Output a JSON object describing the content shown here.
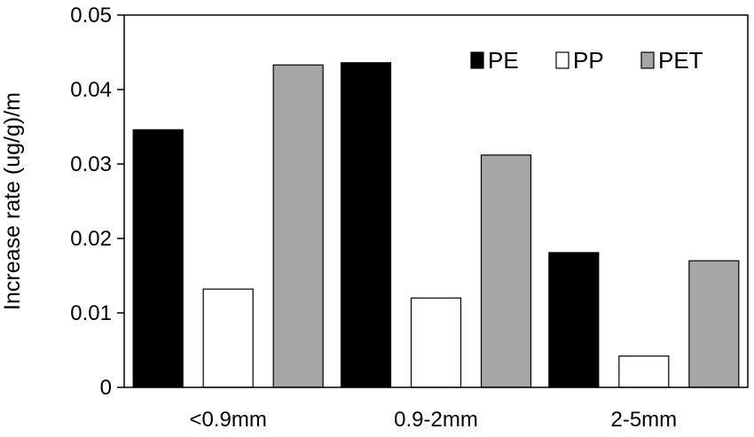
{
  "chart_data": {
    "type": "bar",
    "title": "",
    "xlabel": "",
    "ylabel": "Increase rate (ug/g)/m",
    "categories": [
      "<0.9mm",
      "0.9-2mm",
      "2-5mm"
    ],
    "series": [
      {
        "name": "PE",
        "values": [
          0.0346,
          0.0436,
          0.0181
        ],
        "color": "#000000"
      },
      {
        "name": "PP",
        "values": [
          0.0132,
          0.012,
          0.0042
        ],
        "color": "#ffffff"
      },
      {
        "name": "PET",
        "values": [
          0.0433,
          0.0312,
          0.017
        ],
        "color": "#a6a6a6"
      }
    ],
    "ylim": [
      0,
      0.05
    ],
    "yticks": [
      "0",
      "0.01",
      "0.02",
      "0.03",
      "0.04",
      "0.05"
    ],
    "ytick_values": [
      0,
      0.01,
      0.02,
      0.03,
      0.04,
      0.05
    ],
    "grid": false,
    "legend_position": "top-right",
    "bar_edge_color": "#000000"
  }
}
